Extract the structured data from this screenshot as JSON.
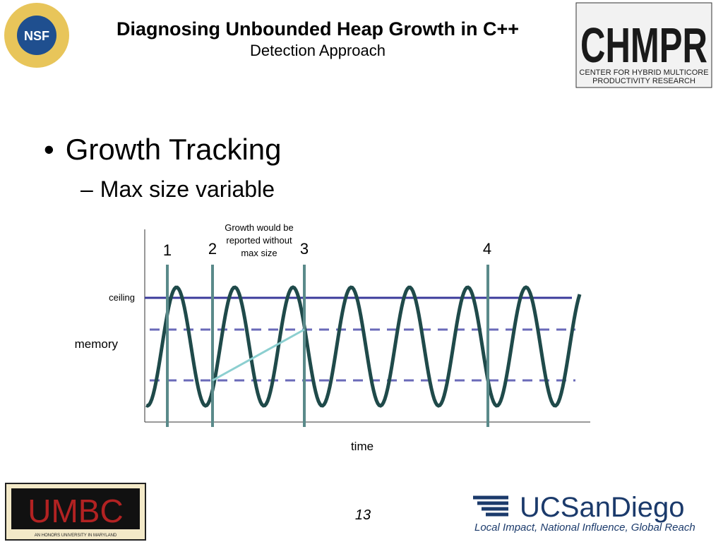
{
  "header": {
    "title": "Diagnosing Unbounded Heap Growth in C++",
    "subtitle": "Detection Approach"
  },
  "logos": {
    "nsf": "NSF",
    "chmpr": "CHMPR",
    "chmpr_caption": [
      "CENTER FOR HYBRID MULTICORE",
      "PRODUCTIVITY RESEARCH"
    ],
    "umbc": "UMBC",
    "umbc_caption": "AN HONORS UNIVERSITY IN MARYLAND",
    "ucsd": "UCSanDiego",
    "ucsd_tagline": "Local Impact, National Influence, Global Reach"
  },
  "bullets": [
    {
      "text": "Growth Tracking",
      "sub": [
        "Max size variable"
      ]
    }
  ],
  "diagram": {
    "markers": [
      "1",
      "2",
      "3",
      "4"
    ],
    "note": [
      "Growth would be",
      "reported without",
      "max size"
    ],
    "ceiling_label": "ceiling",
    "y_label": "memory",
    "x_label": "time"
  },
  "footer": {
    "page": "13"
  }
}
